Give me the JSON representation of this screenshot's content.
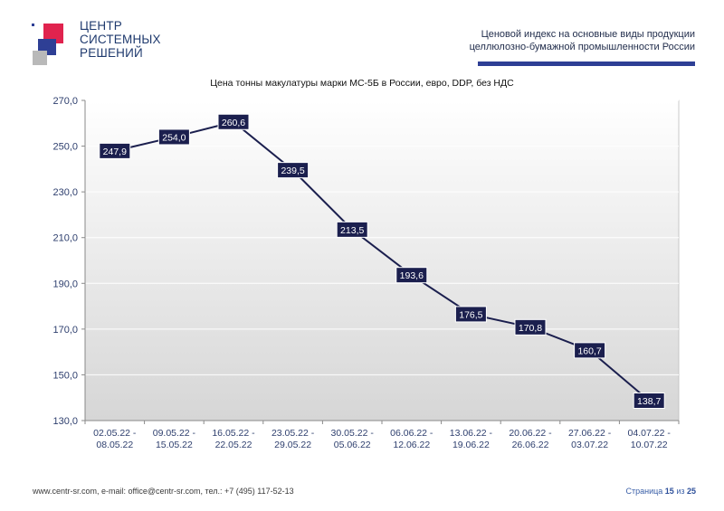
{
  "header": {
    "logo_lines": [
      "ЦЕНТР",
      "СИСТЕМНЫХ",
      "РЕШЕНИЙ"
    ],
    "report_title_line1": "Ценовой индекс на основные виды продукции",
    "report_title_line2": "целлюлозно-бумажной промышленности России",
    "accent_color": "#2e3f95"
  },
  "chart_data": {
    "type": "line",
    "title": "Цена тонны макулатуры марки МС-5Б в России, евро, DDP, без НДС",
    "categories": [
      [
        "02.05.22 -",
        "08.05.22"
      ],
      [
        "09.05.22 -",
        "15.05.22"
      ],
      [
        "16.05.22 -",
        "22.05.22"
      ],
      [
        "23.05.22 -",
        "29.05.22"
      ],
      [
        "30.05.22 -",
        "05.06.22"
      ],
      [
        "06.06.22 -",
        "12.06.22"
      ],
      [
        "13.06.22 -",
        "19.06.22"
      ],
      [
        "20.06.22 -",
        "26.06.22"
      ],
      [
        "27.06.22 -",
        "03.07.22"
      ],
      [
        "04.07.22 -",
        "10.07.22"
      ]
    ],
    "values": [
      247.9,
      254.0,
      260.6,
      239.5,
      213.5,
      193.6,
      176.5,
      170.8,
      160.7,
      138.7
    ],
    "data_labels": [
      "247,9",
      "254,0",
      "260,6",
      "239,5",
      "213,5",
      "193,6",
      "176,5",
      "170,8",
      "160,7",
      "138,7"
    ],
    "ylim": [
      130,
      270
    ],
    "yticks": [
      130,
      150,
      170,
      190,
      210,
      230,
      250,
      270
    ],
    "ytick_labels": [
      "130,0",
      "150,0",
      "170,0",
      "190,0",
      "210,0",
      "230,0",
      "250,0",
      "270,0"
    ],
    "grid": true,
    "line_color": "#1b1f4e",
    "label_bg_color": "#1b1f4e"
  },
  "footer": {
    "contacts": "www.centr-sr.com, e-mail: office@centr-sr.com, тел.: +7 (495) 117-52-13",
    "page_word": "Страница",
    "page_current": "15",
    "page_of": "из",
    "page_total": "25"
  }
}
